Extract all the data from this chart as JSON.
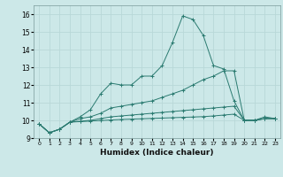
{
  "xlabel": "Humidex (Indice chaleur)",
  "ylabel": "",
  "background_color": "#cce8e8",
  "grid_color": "#b8d8d8",
  "line_color": "#2a7a70",
  "xlim": [
    -0.5,
    23.5
  ],
  "ylim": [
    9.0,
    16.5
  ],
  "x_ticks": [
    0,
    1,
    2,
    3,
    4,
    5,
    6,
    7,
    8,
    9,
    10,
    11,
    12,
    13,
    14,
    15,
    16,
    17,
    18,
    19,
    20,
    21,
    22,
    23
  ],
  "y_ticks": [
    9,
    10,
    11,
    12,
    13,
    14,
    15,
    16
  ],
  "series": [
    [
      9.8,
      9.3,
      9.5,
      9.9,
      10.2,
      10.6,
      11.5,
      12.1,
      12.0,
      12.0,
      12.5,
      12.5,
      13.1,
      14.4,
      15.9,
      15.7,
      14.8,
      13.1,
      12.9,
      11.1,
      10.0,
      10.0,
      10.2,
      10.1
    ],
    [
      9.8,
      9.3,
      9.5,
      9.9,
      10.1,
      10.2,
      10.4,
      10.7,
      10.8,
      10.9,
      11.0,
      11.1,
      11.3,
      11.5,
      11.7,
      12.0,
      12.3,
      12.5,
      12.8,
      12.8,
      10.0,
      10.0,
      10.1,
      10.1
    ],
    [
      9.8,
      9.3,
      9.5,
      9.9,
      9.95,
      10.0,
      10.1,
      10.2,
      10.25,
      10.3,
      10.35,
      10.4,
      10.45,
      10.5,
      10.55,
      10.6,
      10.65,
      10.7,
      10.75,
      10.8,
      10.0,
      10.0,
      10.1,
      10.1
    ],
    [
      9.8,
      9.3,
      9.5,
      9.9,
      9.93,
      9.96,
      9.99,
      10.02,
      10.05,
      10.07,
      10.09,
      10.11,
      10.13,
      10.15,
      10.17,
      10.19,
      10.21,
      10.25,
      10.3,
      10.35,
      10.0,
      10.0,
      10.1,
      10.1
    ]
  ]
}
